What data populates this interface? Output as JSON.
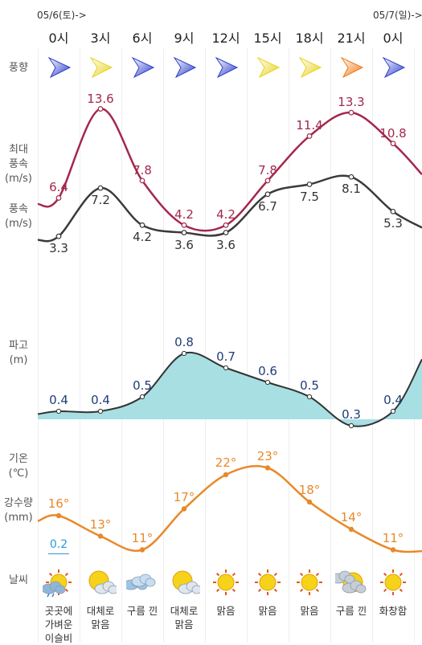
{
  "dates": [
    "05/6(토)->",
    "05/7(일)->"
  ],
  "hours": [
    "0시",
    "3시",
    "6시",
    "9시",
    "12시",
    "15시",
    "18시",
    "21시",
    "0시"
  ],
  "labels": {
    "wind_dir": "풍향",
    "max_wind": [
      "최대",
      "풍속",
      "(m/s)"
    ],
    "wind": [
      "풍속",
      "(m/s)"
    ],
    "wave": [
      "파고",
      "(m)"
    ],
    "temp": [
      "기온",
      "(℃)"
    ],
    "precip": [
      "강수량",
      "(mm)"
    ],
    "weather": "날씨"
  },
  "wind_direction_icons": [
    "blue",
    "yellow",
    "blue",
    "blue",
    "blue",
    "yellow",
    "yellow",
    "orange",
    "blue"
  ],
  "chart_data": [
    {
      "type": "line",
      "series": [
        {
          "values": [
            6.4,
            13.6,
            7.8,
            4.2,
            4.2,
            7.8,
            11.4,
            13.3,
            10.8
          ]
        }
      ]
    },
    {
      "type": "line",
      "series": [
        {
          "values": [
            3.3,
            7.2,
            4.2,
            3.6,
            3.6,
            6.7,
            7.5,
            8.1,
            5.3
          ]
        }
      ]
    },
    {
      "type": "area",
      "series": [
        {
          "values": [
            0.4,
            0.4,
            0.5,
            0.8,
            0.7,
            0.6,
            0.5,
            0.3,
            0.4
          ]
        }
      ]
    },
    {
      "type": "line",
      "series": [
        {
          "values": [
            16,
            13,
            11,
            17,
            22,
            23,
            18,
            14,
            11
          ]
        }
      ]
    }
  ],
  "max_wind_labels": [
    "6.4",
    "13.6",
    "7.8",
    "4.2",
    "4.2",
    "7.8",
    "11.4",
    "13.3",
    "10.8"
  ],
  "wind_labels": [
    "3.3",
    "7.2",
    "4.2",
    "3.6",
    "3.6",
    "6.7",
    "7.5",
    "8.1",
    "5.3"
  ],
  "wave_labels": [
    "0.4",
    "0.4",
    "0.5",
    "0.8",
    "0.7",
    "0.6",
    "0.5",
    "0.3",
    "0.4"
  ],
  "temp_labels": [
    "16°",
    "13°",
    "11°",
    "17°",
    "22°",
    "23°",
    "18°",
    "14°",
    "11°"
  ],
  "precip": {
    "value": "0.2"
  },
  "weather": [
    {
      "icon": "sun-cloud-rain-icon",
      "lines": [
        "곳곳에",
        "가벼운",
        "이슬비"
      ]
    },
    {
      "icon": "sun-cloud-icon",
      "lines": [
        "대체로",
        "맑음"
      ]
    },
    {
      "icon": "cloud-icon",
      "lines": [
        "구름 낀"
      ]
    },
    {
      "icon": "sun-cloud-icon",
      "lines": [
        "대체로",
        "맑음"
      ]
    },
    {
      "icon": "sun-icon",
      "lines": [
        "맑음"
      ]
    },
    {
      "icon": "sun-icon",
      "lines": [
        "맑음"
      ]
    },
    {
      "icon": "sun-icon",
      "lines": [
        "맑음"
      ]
    },
    {
      "icon": "moon-cloud-icon",
      "lines": [
        "구름 낀"
      ]
    },
    {
      "icon": "sun-icon",
      "lines": [
        "화창함"
      ]
    }
  ],
  "colors": {
    "max_wind": "#a3284c",
    "wind": "#3a3a3a",
    "wave_fill": "#a8dfe3",
    "wave_line": "#333333",
    "wave_label": "#1f3d7a",
    "temp": "#e8892a",
    "precip": "#2a9ad8",
    "arrow_blue": "#2f40c8",
    "arrow_yellow": "#e9d21d",
    "arrow_orange": "#f07a18"
  }
}
